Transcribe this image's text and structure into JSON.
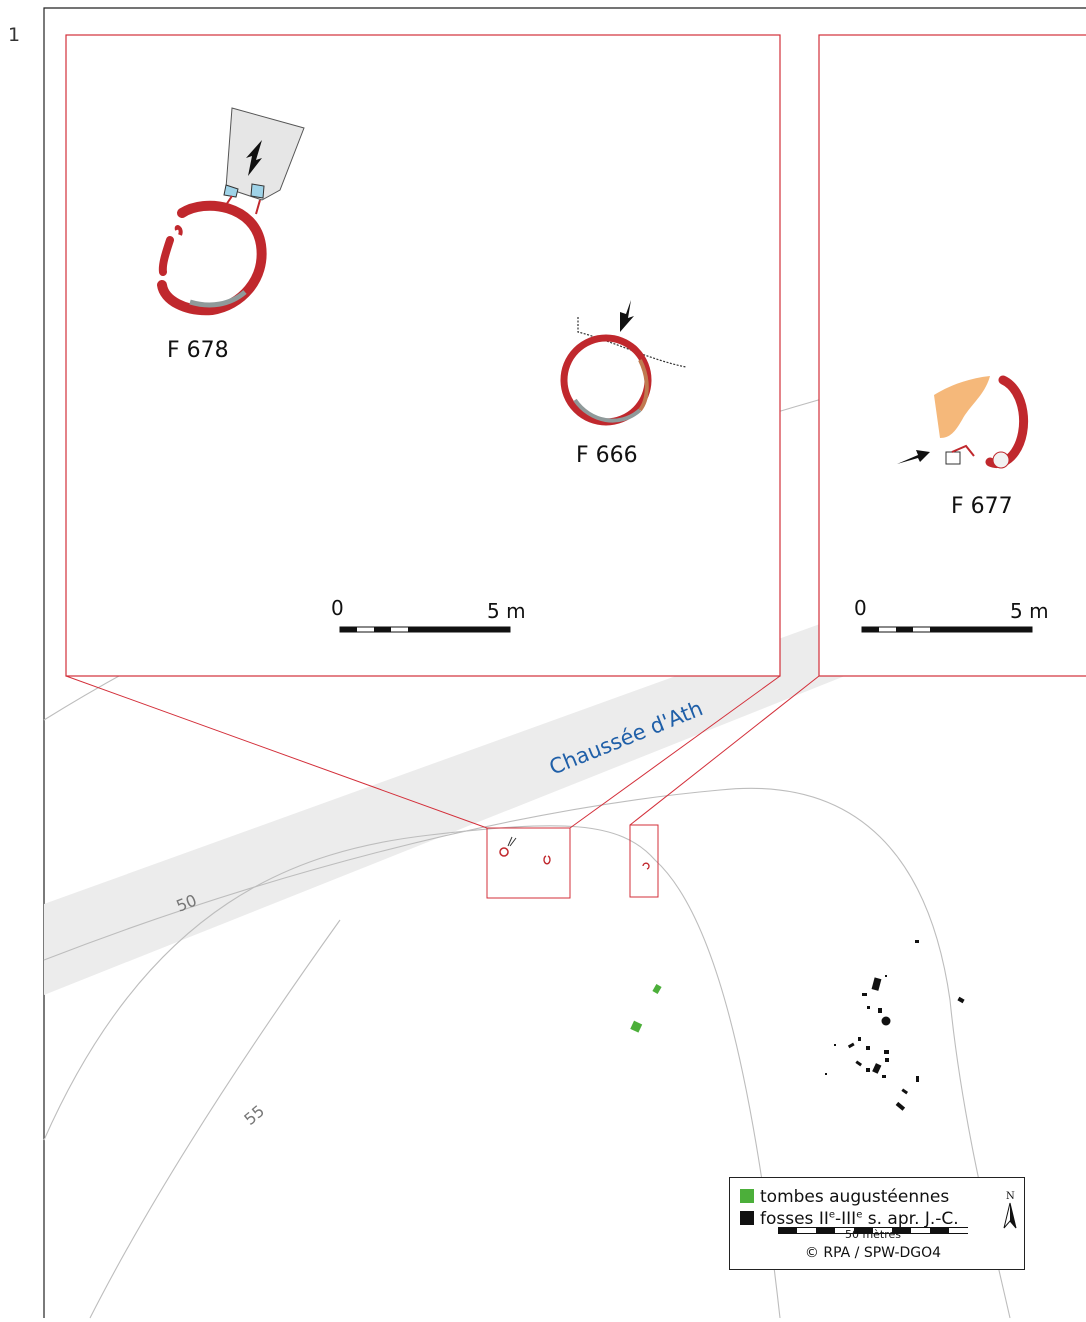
{
  "figure_number": "1",
  "road_name": "Chaussée d'Ath",
  "contours": {
    "c50": "50",
    "c55": "55"
  },
  "inset_left": {
    "features": [
      "F 678",
      "F 666"
    ],
    "scale_start": "0",
    "scale_end": "5 m"
  },
  "inset_right": {
    "features": [
      "F 677"
    ],
    "scale_start": "0",
    "scale_end": "5 m"
  },
  "legend": {
    "tombes_label": "tombes augustéennes",
    "fosses_prefix": "fosses II",
    "fosses_sup1": "e",
    "fosses_mid": "-III",
    "fosses_sup2": "e",
    "fosses_suffix": " s. apr. J.-C.",
    "scale_label": "50 mètres",
    "north_label": "N",
    "copyright": "© RPA / SPW-DGO4"
  },
  "colors": {
    "tombes": "#4caf3a",
    "fosses": "#111111",
    "inset_frame": "#d32f3a",
    "wall": "#c0282d",
    "road": "#ececec",
    "road_label": "#1f5fa8",
    "pit_fill": "#f5b87a",
    "blue_fill": "#9fd3e8"
  }
}
